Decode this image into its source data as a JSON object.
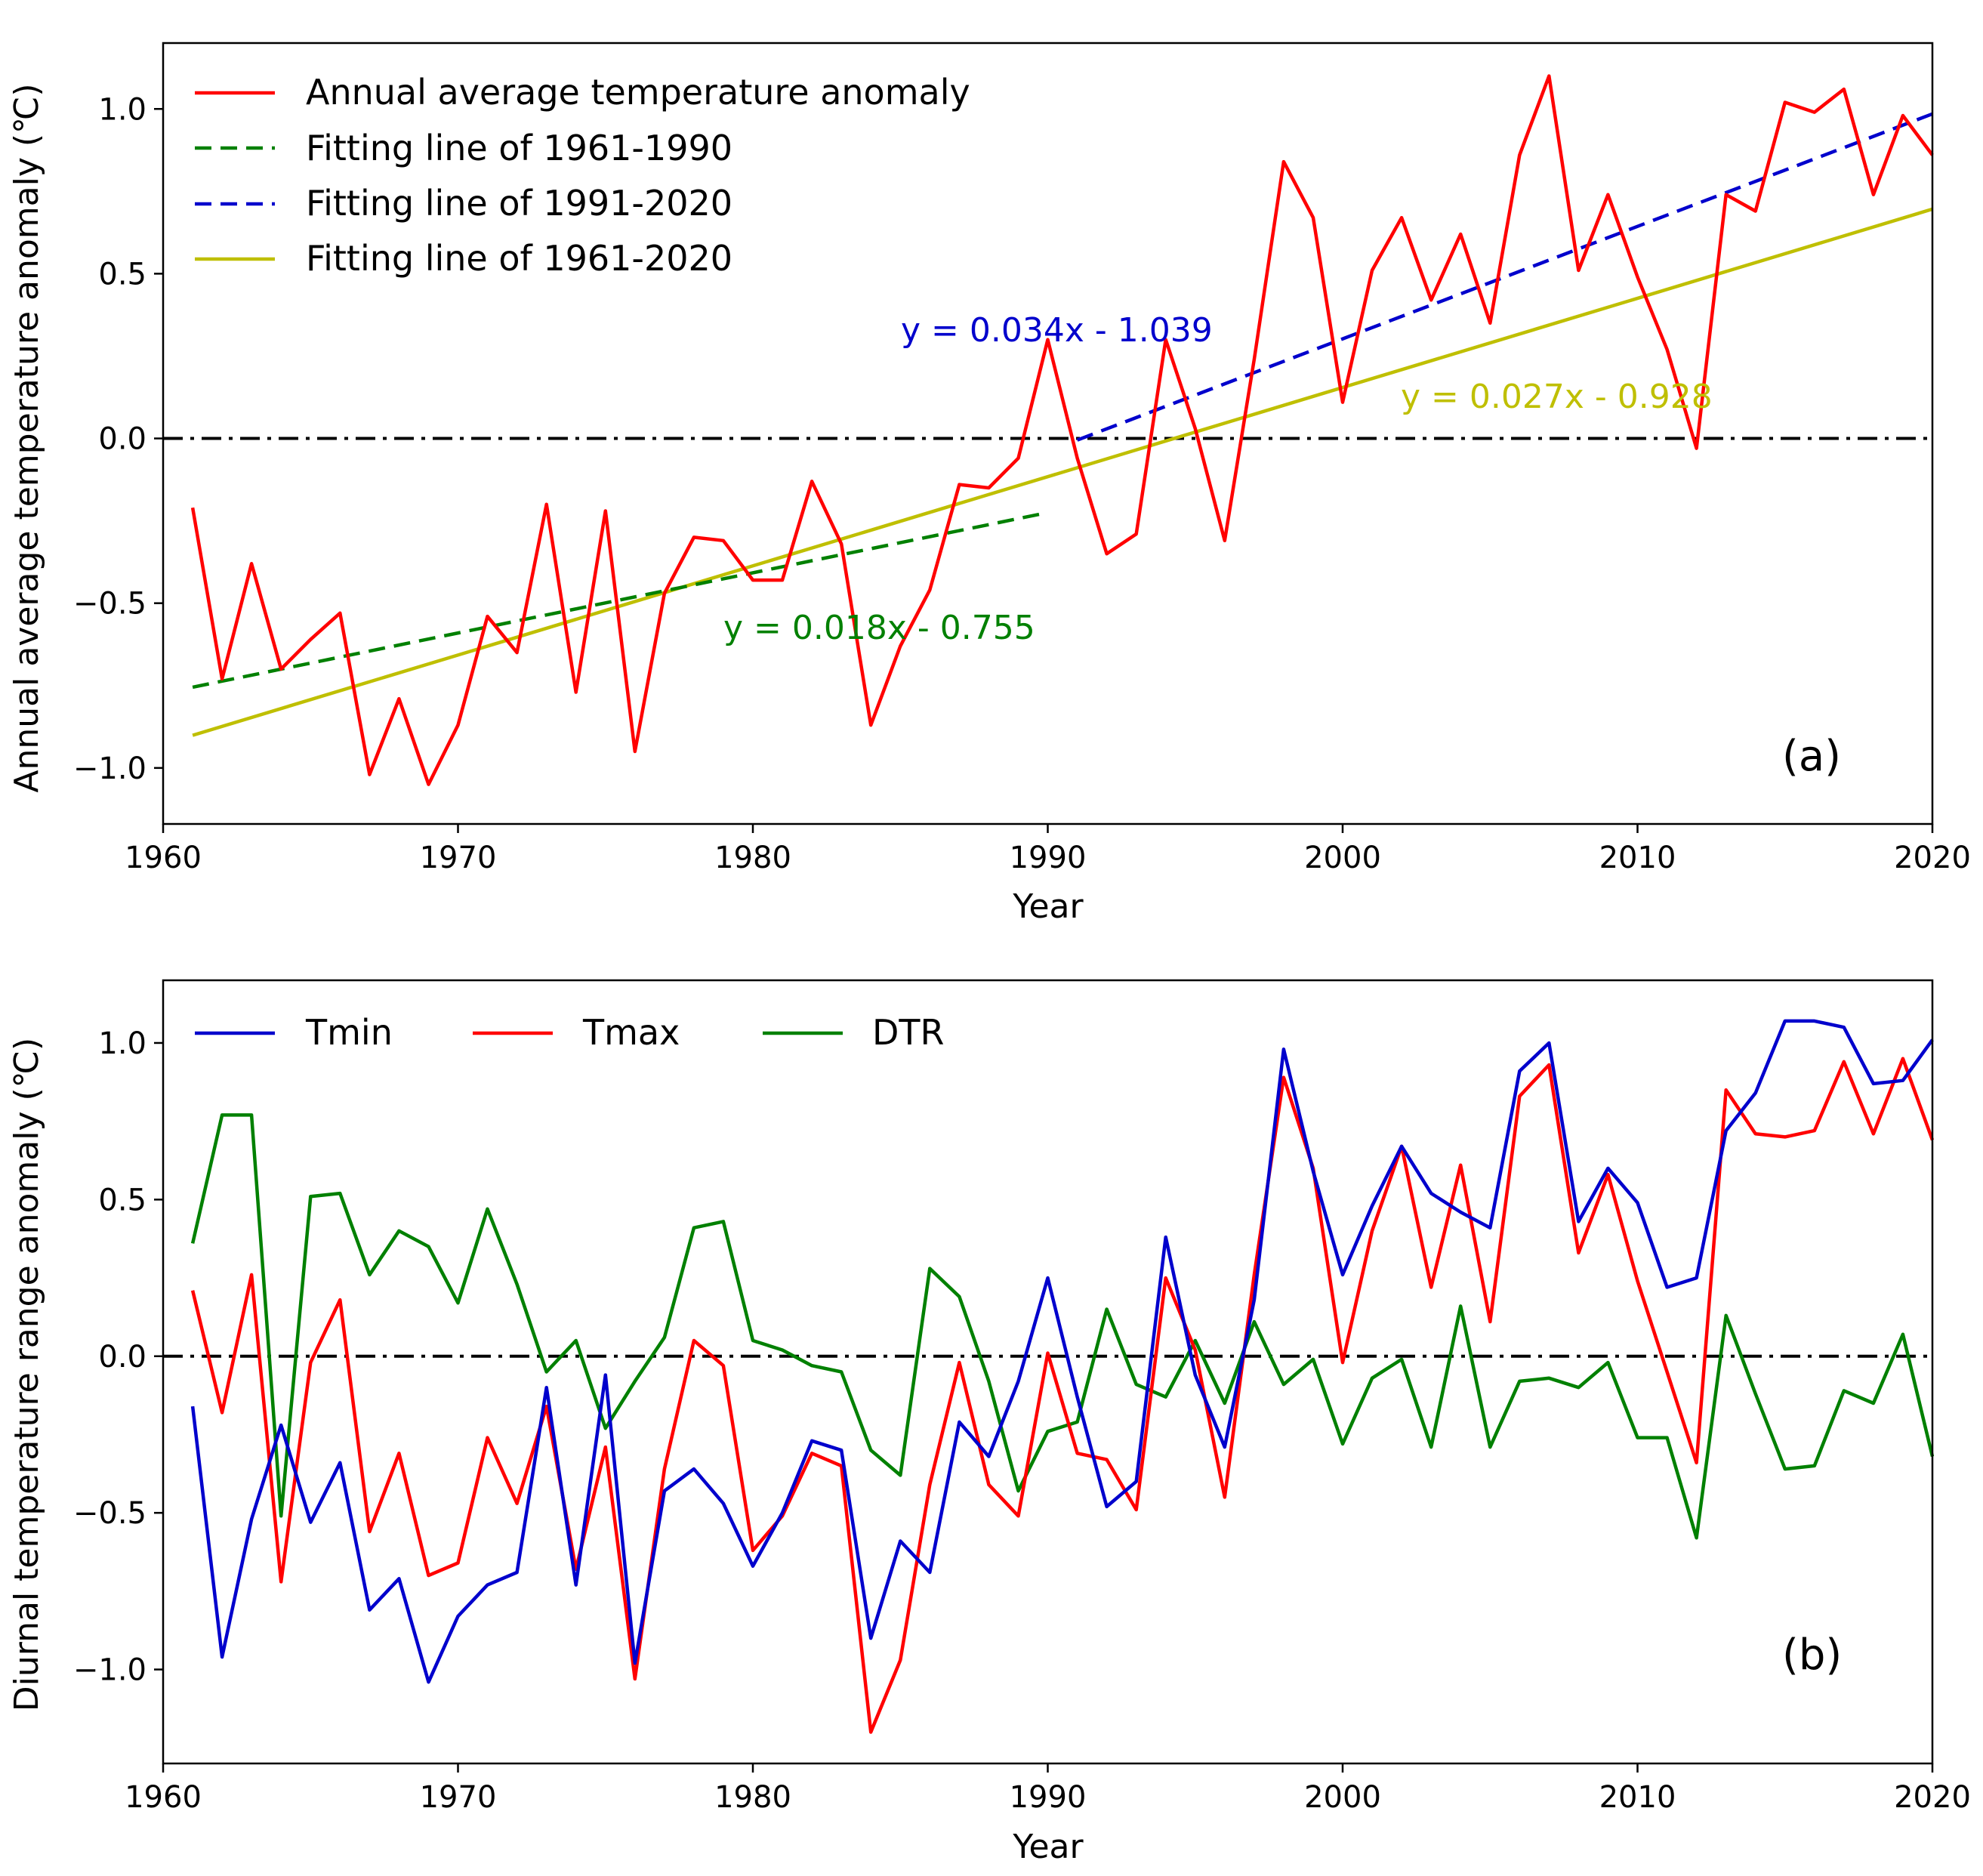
{
  "chart_data": [
    {
      "type": "line",
      "panel_label": "(a)",
      "xlabel": "Year",
      "ylabel": "Annual average temperature anomaly (℃)",
      "xlim": [
        1960,
        2020
      ],
      "ylim": [
        -1.17,
        1.2
      ],
      "xticks": [
        "1960",
        "1970",
        "1980",
        "1990",
        "2000",
        "2010",
        "2020"
      ],
      "yticks": [
        "−1.0",
        "−0.5",
        "0.0",
        "0.5",
        "1.0"
      ],
      "reference_line": 0,
      "colors": {
        "anomaly": "#ff0000",
        "fit_early": "#008000",
        "fit_late": "#0000cc",
        "fit_all": "#bfbf00",
        "ref": "#000000"
      },
      "legend": [
        "Annual average temperature anomaly",
        "Fitting line of 1961-1990",
        "Fitting line of 1991-2020",
        "Fitting line of 1961-2020"
      ],
      "equations": {
        "early": "y = 0.018x - 0.755",
        "late": "y = 0.034x - 1.039",
        "all": "y = 0.027x - 0.928"
      },
      "x": [
        1961,
        1962,
        1963,
        1964,
        1965,
        1966,
        1967,
        1968,
        1969,
        1970,
        1971,
        1972,
        1973,
        1974,
        1975,
        1976,
        1977,
        1978,
        1979,
        1980,
        1981,
        1982,
        1983,
        1984,
        1985,
        1986,
        1987,
        1988,
        1989,
        1990,
        1991,
        1992,
        1993,
        1994,
        1995,
        1996,
        1997,
        1998,
        1999,
        2000,
        2001,
        2002,
        2003,
        2004,
        2005,
        2006,
        2007,
        2008,
        2009,
        2010,
        2011,
        2012,
        2013,
        2014,
        2015,
        2016,
        2017,
        2018,
        2019,
        2020
      ],
      "series": [
        {
          "name": "Annual average temperature anomaly",
          "values": [
            -0.21,
            -0.73,
            -0.38,
            -0.7,
            -0.61,
            -0.53,
            -1.02,
            -0.79,
            -1.05,
            -0.87,
            -0.54,
            -0.65,
            -0.2,
            -0.77,
            -0.22,
            -0.95,
            -0.47,
            -0.3,
            -0.31,
            -0.43,
            -0.43,
            -0.13,
            -0.32,
            -0.87,
            -0.63,
            -0.46,
            -0.14,
            -0.15,
            -0.06,
            0.3,
            -0.06,
            -0.35,
            -0.29,
            0.3,
            0.03,
            -0.31,
            0.24,
            0.84,
            0.67,
            0.11,
            0.51,
            0.67,
            0.42,
            0.62,
            0.35,
            0.86,
            1.1,
            0.51,
            0.74,
            0.49,
            0.27,
            -0.03,
            0.74,
            0.69,
            1.02,
            0.99,
            1.06,
            0.74,
            0.98,
            0.86
          ]
        },
        {
          "name": "Fitting line of 1961-1990",
          "x": [
            1961,
            1990
          ],
          "values": [
            -0.755,
            -0.225
          ]
        },
        {
          "name": "Fitting line of 1991-2020",
          "x": [
            1991,
            2020
          ],
          "values": [
            -0.005,
            0.985
          ]
        },
        {
          "name": "Fitting line of 1961-2020",
          "x": [
            1961,
            2020
          ],
          "values": [
            -0.901,
            0.696
          ]
        }
      ]
    },
    {
      "type": "line",
      "panel_label": "(b)",
      "xlabel": "Year",
      "ylabel": "Diurnal temperature range anomaly (℃)",
      "xlim": [
        1960,
        2020
      ],
      "ylim": [
        -1.3,
        1.2
      ],
      "xticks": [
        "1960",
        "1970",
        "1980",
        "1990",
        "2000",
        "2010",
        "2020"
      ],
      "yticks": [
        "−1.0",
        "−0.5",
        "0.0",
        "0.5",
        "1.0"
      ],
      "reference_line": 0,
      "colors": {
        "Tmin": "#0000cc",
        "Tmax": "#ff0000",
        "DTR": "#008000",
        "ref": "#000000"
      },
      "legend": [
        "Tmin",
        "Tmax",
        "DTR"
      ],
      "x": [
        1961,
        1962,
        1963,
        1964,
        1965,
        1966,
        1967,
        1968,
        1969,
        1970,
        1971,
        1972,
        1973,
        1974,
        1975,
        1976,
        1977,
        1978,
        1979,
        1980,
        1981,
        1982,
        1983,
        1984,
        1985,
        1986,
        1987,
        1988,
        1989,
        1990,
        1991,
        1992,
        1993,
        1994,
        1995,
        1996,
        1997,
        1998,
        1999,
        2000,
        2001,
        2002,
        2003,
        2004,
        2005,
        2006,
        2007,
        2008,
        2009,
        2010,
        2011,
        2012,
        2013,
        2014,
        2015,
        2016,
        2017,
        2018,
        2019,
        2020
      ],
      "series": [
        {
          "name": "Tmin",
          "values": [
            -0.16,
            -0.96,
            -0.52,
            -0.22,
            -0.53,
            -0.34,
            -0.81,
            -0.71,
            -1.04,
            -0.83,
            -0.73,
            -0.69,
            -0.1,
            -0.73,
            -0.06,
            -0.98,
            -0.43,
            -0.36,
            -0.47,
            -0.67,
            -0.5,
            -0.27,
            -0.3,
            -0.9,
            -0.59,
            -0.69,
            -0.21,
            -0.32,
            -0.08,
            0.25,
            -0.13,
            -0.48,
            -0.4,
            0.38,
            -0.06,
            -0.29,
            0.18,
            0.98,
            0.59,
            0.26,
            0.48,
            0.67,
            0.52,
            0.46,
            0.41,
            0.91,
            1.0,
            0.43,
            0.6,
            0.49,
            0.22,
            0.25,
            0.72,
            0.84,
            1.07,
            1.07,
            1.05,
            0.87,
            0.88,
            1.01
          ]
        },
        {
          "name": "Tmax",
          "values": [
            0.21,
            -0.18,
            0.26,
            -0.72,
            -0.02,
            0.18,
            -0.56,
            -0.31,
            -0.7,
            -0.66,
            -0.26,
            -0.47,
            -0.16,
            -0.68,
            -0.29,
            -1.03,
            -0.36,
            0.05,
            -0.03,
            -0.62,
            -0.51,
            -0.31,
            -0.35,
            -1.2,
            -0.97,
            -0.41,
            -0.02,
            -0.41,
            -0.51,
            0.01,
            -0.31,
            -0.33,
            -0.49,
            0.25,
            0.02,
            -0.45,
            0.26,
            0.89,
            0.6,
            -0.02,
            0.4,
            0.67,
            0.22,
            0.61,
            0.11,
            0.83,
            0.93,
            0.33,
            0.58,
            0.24,
            -0.05,
            -0.34,
            0.85,
            0.71,
            0.7,
            0.72,
            0.94,
            0.71,
            0.95,
            0.69
          ]
        },
        {
          "name": "DTR",
          "values": [
            0.36,
            0.77,
            0.77,
            -0.51,
            0.51,
            0.52,
            0.26,
            0.4,
            0.35,
            0.17,
            0.47,
            0.23,
            -0.05,
            0.05,
            -0.23,
            -0.08,
            0.06,
            0.41,
            0.43,
            0.05,
            0.02,
            -0.03,
            -0.05,
            -0.3,
            -0.38,
            0.28,
            0.19,
            -0.08,
            -0.43,
            -0.24,
            -0.21,
            0.15,
            -0.09,
            -0.13,
            0.05,
            -0.15,
            0.11,
            -0.09,
            -0.01,
            -0.28,
            -0.07,
            -0.01,
            -0.29,
            0.16,
            -0.29,
            -0.08,
            -0.07,
            -0.1,
            -0.02,
            -0.26,
            -0.26,
            -0.58,
            0.13,
            -0.12,
            -0.36,
            -0.35,
            -0.11,
            -0.15,
            0.07,
            -0.32
          ]
        }
      ]
    }
  ]
}
